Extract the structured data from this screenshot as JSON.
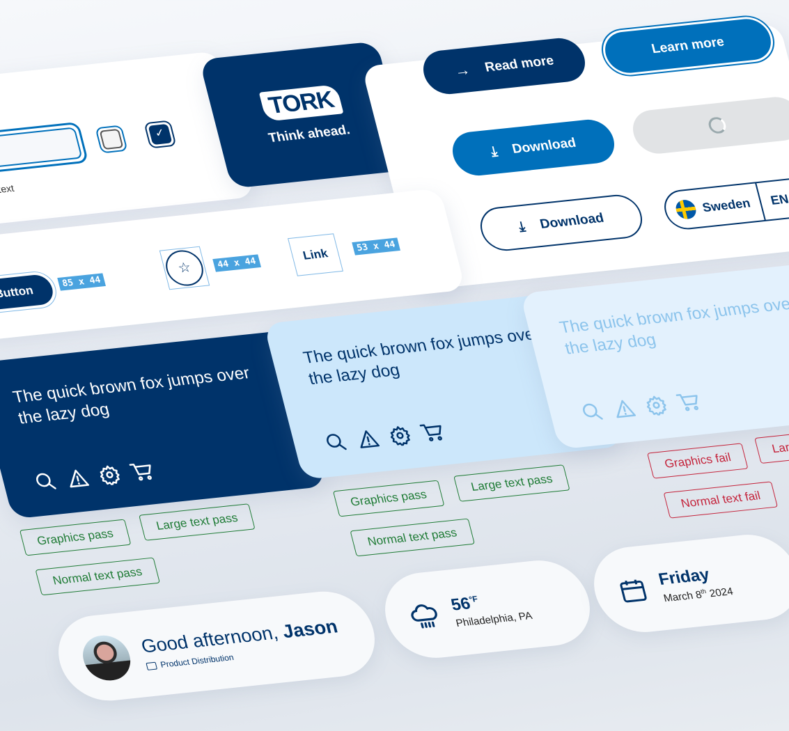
{
  "colors": {
    "navy": "#00336a",
    "blue": "#0070bb",
    "light_blue_card": "#cce7fb",
    "pale_card": "#e3f1fd",
    "pass": "#1e7b35",
    "fail": "#c4223a",
    "measure_tag": "#4aa3df"
  },
  "form": {
    "helper_text": "Helper text",
    "checkbox_unchecked": false,
    "checkbox_checked": true
  },
  "brand": {
    "logo": "TORK",
    "tagline": "Think ahead."
  },
  "buttons": {
    "read_more": "Read more",
    "learn_more": "Learn more",
    "download_primary": "Download",
    "download_secondary": "Download",
    "country": "Sweden",
    "language": "EN"
  },
  "touch_targets": {
    "button_label": "Button",
    "button_size": "85 x 44",
    "icon_size": "44 x 44",
    "link_label": "Link",
    "link_size": "53 x 44"
  },
  "samples": {
    "text": "The quick brown fox jumps over the lazy dog",
    "icons": [
      "search-icon",
      "warning-icon",
      "gear-icon",
      "cart-icon"
    ],
    "dark": {
      "chips": [
        "Graphics pass",
        "Large text pass",
        "Normal text pass"
      ]
    },
    "light": {
      "chips": [
        "Graphics pass",
        "Large text pass",
        "Normal text pass"
      ]
    },
    "pale": {
      "chips": [
        "Graphics fail",
        "Large text fail",
        "Normal text fail"
      ]
    }
  },
  "greeting": {
    "prefix": "Good afternoon,",
    "name": "Jason",
    "department": "Product Distribution"
  },
  "weather": {
    "temp": "56",
    "unit": "°F",
    "location": "Philadelphia, PA",
    "icon": "rain-cloud-icon"
  },
  "date": {
    "day": "Friday",
    "month": "March 8",
    "ordinal": "th",
    "year": "2024",
    "icon": "calendar-icon"
  }
}
